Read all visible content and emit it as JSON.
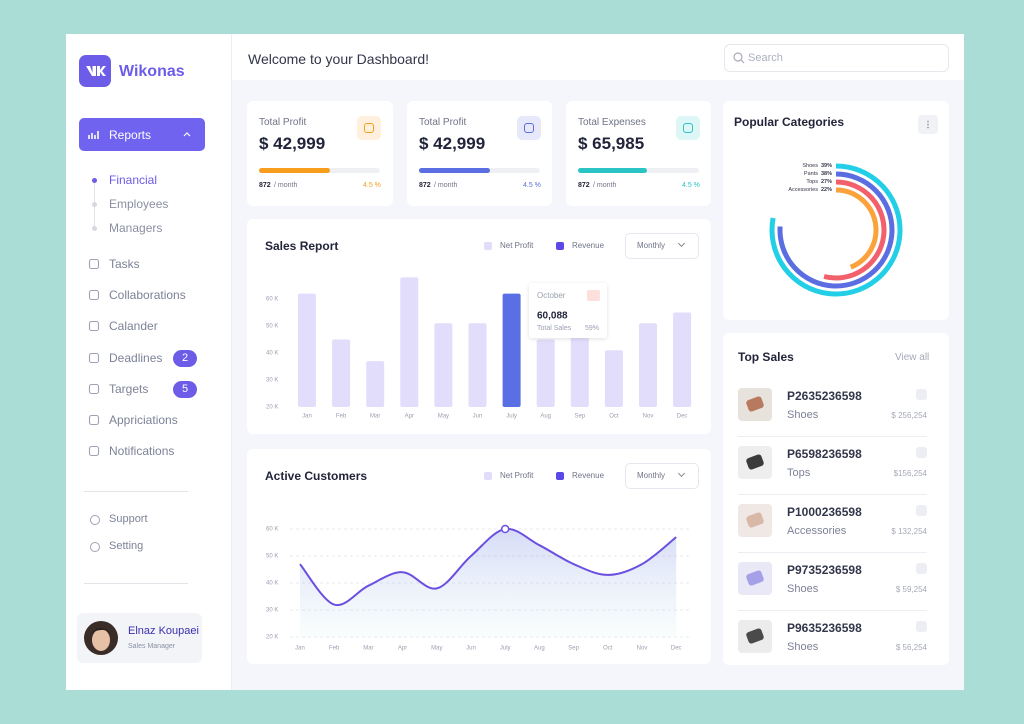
{
  "brand": "Wikonas",
  "header": {
    "title": "Welcome to your Dashboard!",
    "search": "Search"
  },
  "sidebar": {
    "reports": "Reports",
    "report_links": [
      "Financial",
      "Employees",
      "Managers"
    ],
    "active_link": "Financial",
    "menu": [
      {
        "label": "Tasks"
      },
      {
        "label": "Collaborations"
      },
      {
        "label": "Calander"
      },
      {
        "label": "Deadlines",
        "badge": 2
      },
      {
        "label": "Targets",
        "badge": 5
      },
      {
        "label": "Appriciations"
      },
      {
        "label": "Notifications"
      }
    ],
    "footer_menu": [
      "Support",
      "Setting"
    ],
    "user": {
      "name": "Elnaz Koupaei",
      "role": "Sales Manager"
    }
  },
  "stats": [
    {
      "label": "Total Profit",
      "value": "$ 42,999",
      "progress": 59,
      "count": "872",
      "period": "/ month",
      "change": "4.5 %",
      "color": "#f99d1c"
    },
    {
      "label": "Total Profit",
      "value": "$ 42,999",
      "progress": 59,
      "count": "872",
      "period": "/ month",
      "change": "4.5 %",
      "color": "#5b6ee1"
    },
    {
      "label": "Total Expenses",
      "value": "$ 65,985",
      "progress": 57,
      "count": "872",
      "period": "/ month",
      "change": "4.5 %",
      "color": "#2bc4c4"
    }
  ],
  "chart_data": [
    {
      "type": "bar",
      "title": "Sales Report",
      "legend": [
        {
          "name": "Net Profit",
          "color": "#e2ddfb"
        },
        {
          "name": "Revenue",
          "color": "#5b48e6"
        }
      ],
      "control": "Monthly",
      "categories": [
        "Jan",
        "Feb",
        "Mar",
        "Apr",
        "May",
        "Jun",
        "July",
        "Aug",
        "Sep",
        "Oct",
        "Nov",
        "Dec"
      ],
      "values": [
        62000,
        45000,
        37000,
        68000,
        51000,
        51000,
        62000,
        45000,
        50000,
        41000,
        51000,
        55000
      ],
      "color": "#e2ddfb",
      "highlight": "July",
      "highlight_color": "#5a6fe3",
      "ylim": [
        20000,
        70000
      ],
      "yticks": [
        {
          "value": 20000,
          "label": "20 K"
        },
        {
          "value": 30000,
          "label": "30 K"
        },
        {
          "value": 40000,
          "label": "40 K"
        },
        {
          "value": 50000,
          "label": "50 K"
        },
        {
          "value": 60000,
          "label": "60 K"
        }
      ],
      "grid": false,
      "tooltip": {
        "title": "October",
        "value": "60,088",
        "caption": "Total Sales",
        "share": "59%"
      }
    },
    {
      "type": "line",
      "title": "Active Customers",
      "legend": [
        {
          "name": "Net Profit",
          "color": "#e2ddfb"
        },
        {
          "name": "Revenue",
          "color": "#5b48e6"
        }
      ],
      "control": "Monthly",
      "categories": [
        "Jan",
        "Feb",
        "Mar",
        "Apr",
        "May",
        "Jun",
        "July",
        "Aug",
        "Sep",
        "Oct",
        "Nov",
        "Dec"
      ],
      "values": [
        47000,
        32000,
        39000,
        44000,
        38000,
        50000,
        60000,
        54000,
        47000,
        43000,
        47000,
        57000
      ],
      "color": "#6a4fe0",
      "highlight": "July",
      "ylim": [
        20000,
        70000
      ],
      "yticks": [
        {
          "value": 20000,
          "label": "20 K"
        },
        {
          "value": 30000,
          "label": "30 K"
        },
        {
          "value": 40000,
          "label": "40 K"
        },
        {
          "value": 50000,
          "label": "50 K"
        },
        {
          "value": 60000,
          "label": "60 K"
        }
      ],
      "grid": true
    },
    {
      "type": "donut",
      "title": "Popular Categories",
      "categories": [
        "Shoes",
        "Pants",
        "Tops",
        "Accessories"
      ],
      "values": [
        39,
        38,
        27,
        22
      ],
      "value_labels": [
        "39%",
        "38%",
        "27%",
        "22%"
      ],
      "colors": [
        "#22cfe6",
        "#5b6ee1",
        "#f2616b",
        "#fba23a"
      ]
    }
  ],
  "top_sales": {
    "title": "Top Sales",
    "link": "View all",
    "items": [
      {
        "id": "P2635236598",
        "category": "Shoes",
        "price": "$ 256,254"
      },
      {
        "id": "P6598236598",
        "category": "Tops",
        "price": "$156,254"
      },
      {
        "id": "P1000236598",
        "category": "Accessories",
        "price": "$ 132,254"
      },
      {
        "id": "P9735236598",
        "category": "Shoes",
        "price": "$ 59,254"
      },
      {
        "id": "P9635236598",
        "category": "Shoes",
        "price": "$ 56,254"
      }
    ]
  }
}
